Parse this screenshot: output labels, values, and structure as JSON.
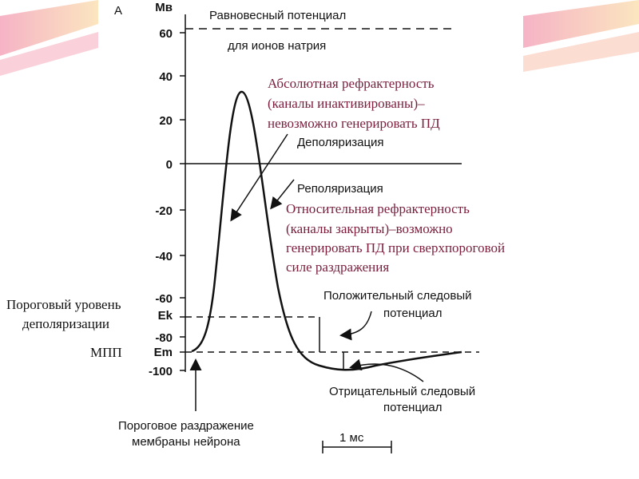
{
  "panel_label": "А",
  "axis_unit": "Мв",
  "y_tick_labels": [
    "60",
    "40",
    "20",
    "0",
    "-20",
    "-40",
    "-60",
    "Ek",
    "-80",
    "Em",
    "-100"
  ],
  "equilibrium": [
    "Равновесный потенциал",
    "для ионов натрия"
  ],
  "absolute_refractory": [
    "Абсолютная рефрактерность",
    "(каналы инактивированы)–",
    "невозможно генерировать ПД"
  ],
  "depolarization": "Деполяризация",
  "repolarization": "Реполяризация",
  "relative_refractory": [
    "Относительная рефрактерность",
    "(каналы закрыты)–возможно",
    "генерировать ПД при сверхпороговой",
    "силе раздражения"
  ],
  "positive_trace": [
    "Положительный следовый",
    "потенциал"
  ],
  "negative_trace": [
    "Отрицательный следовый",
    "потенциал"
  ],
  "threshold_stimulus": [
    "Пороговое раздражение",
    "мембраны нейрона"
  ],
  "time_scale": "1 мс",
  "threshold_level": [
    "Пороговый уровень",
    "деполяризации"
  ],
  "resting_potential": "МПП"
}
